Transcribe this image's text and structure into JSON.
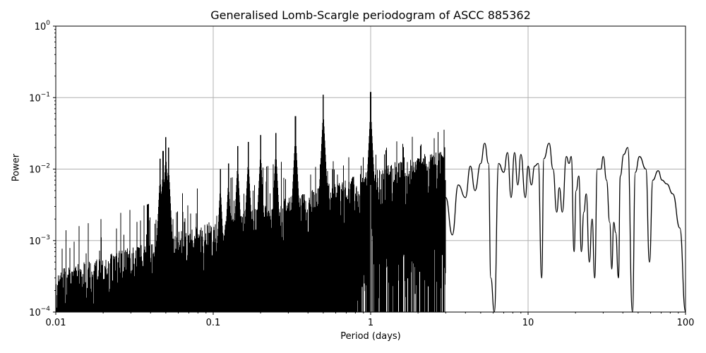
{
  "chart_data": {
    "type": "line",
    "title": "Generalised Lomb-Scargle periodogram of ASCC 885362",
    "xlabel": "Period (days)",
    "ylabel": "Power",
    "xscale": "log",
    "yscale": "log",
    "xlim": [
      0.01,
      100
    ],
    "ylim": [
      0.0001,
      1
    ],
    "xticks": [
      "0.01",
      "0.1",
      "1",
      "10",
      "100"
    ],
    "yticks": [
      {
        "base": "10",
        "exp": "0"
      },
      {
        "base": "10",
        "exp": "−1"
      },
      {
        "base": "10",
        "exp": "−2"
      },
      {
        "base": "10",
        "exp": "−3"
      },
      {
        "base": "10",
        "exp": "−4"
      }
    ],
    "grid": true,
    "line_color": "#000000",
    "grid_color": "#b0b0b0",
    "peaks": [
      {
        "period": 1.0,
        "power": 0.12
      },
      {
        "period": 0.5,
        "power": 0.11
      },
      {
        "period": 0.333,
        "power": 0.055
      },
      {
        "period": 0.25,
        "power": 0.032
      },
      {
        "period": 0.2,
        "power": 0.03
      },
      {
        "period": 0.167,
        "power": 0.024
      },
      {
        "period": 0.143,
        "power": 0.021
      },
      {
        "period": 0.125,
        "power": 0.012
      },
      {
        "period": 0.111,
        "power": 0.01
      },
      {
        "period": 0.05,
        "power": 0.028
      },
      {
        "period": 0.048,
        "power": 0.018
      },
      {
        "period": 0.052,
        "power": 0.02
      },
      {
        "period": 0.046,
        "power": 0.014
      }
    ],
    "smooth_curve": [
      [
        3.0,
        0.004
      ],
      [
        3.3,
        0.0012
      ],
      [
        3.6,
        0.006
      ],
      [
        4.0,
        0.004
      ],
      [
        4.3,
        0.011
      ],
      [
        4.6,
        0.005
      ],
      [
        5.0,
        0.012
      ],
      [
        5.3,
        0.023
      ],
      [
        5.6,
        0.012
      ],
      [
        5.8,
        0.0003
      ],
      [
        6.1,
        0.0001
      ],
      [
        6.5,
        0.012
      ],
      [
        7.0,
        0.009
      ],
      [
        7.4,
        0.017
      ],
      [
        7.8,
        0.004
      ],
      [
        8.2,
        0.017
      ],
      [
        8.6,
        0.006
      ],
      [
        9.0,
        0.016
      ],
      [
        9.6,
        0.004
      ],
      [
        10.0,
        0.011
      ],
      [
        10.5,
        0.006
      ],
      [
        11.0,
        0.011
      ],
      [
        11.6,
        0.012
      ],
      [
        12.2,
        0.0003
      ],
      [
        12.6,
        0.014
      ],
      [
        13.6,
        0.023
      ],
      [
        14.4,
        0.01
      ],
      [
        15.2,
        0.0025
      ],
      [
        15.8,
        0.0055
      ],
      [
        16.5,
        0.0025
      ],
      [
        17.5,
        0.015
      ],
      [
        18.2,
        0.012
      ],
      [
        18.8,
        0.015
      ],
      [
        19.6,
        0.0007
      ],
      [
        20.2,
        0.005
      ],
      [
        21.0,
        0.008
      ],
      [
        21.8,
        0.0007
      ],
      [
        22.6,
        0.0025
      ],
      [
        23.4,
        0.0045
      ],
      [
        24.5,
        0.0005
      ],
      [
        25.5,
        0.002
      ],
      [
        26.5,
        0.0003
      ],
      [
        27.5,
        0.01
      ],
      [
        29.0,
        0.01
      ],
      [
        30.0,
        0.015
      ],
      [
        31.5,
        0.007
      ],
      [
        33.0,
        0.0018
      ],
      [
        34.0,
        0.0004
      ],
      [
        35.0,
        0.0018
      ],
      [
        36.0,
        0.0013
      ],
      [
        37.5,
        0.0003
      ],
      [
        38.5,
        0.008
      ],
      [
        40.5,
        0.016
      ],
      [
        43.0,
        0.02
      ],
      [
        46.0,
        0.0001
      ],
      [
        48.0,
        0.009
      ],
      [
        51.0,
        0.015
      ],
      [
        56.0,
        0.01
      ],
      [
        59.0,
        0.0005
      ],
      [
        62.0,
        0.007
      ],
      [
        67.0,
        0.0095
      ],
      [
        71.0,
        0.007
      ],
      [
        76.0,
        0.0062
      ],
      [
        83.0,
        0.0045
      ],
      [
        92.0,
        0.0015
      ],
      [
        100.0,
        0.0001
      ]
    ]
  }
}
